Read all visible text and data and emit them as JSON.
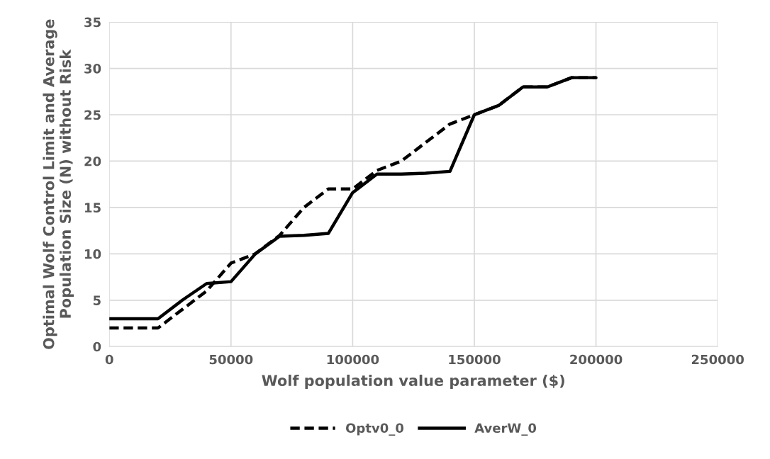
{
  "chart_data": {
    "type": "line",
    "xlabel": "Wolf population value parameter ($)",
    "ylabel": "Optimal Wolf Control Limit and Average Population Size (N) without Risk",
    "x": [
      0,
      10000,
      20000,
      30000,
      40000,
      50000,
      60000,
      70000,
      80000,
      90000,
      100000,
      110000,
      120000,
      130000,
      140000,
      150000,
      160000,
      170000,
      180000,
      190000,
      200000
    ],
    "series": [
      {
        "name": "Optv0_0",
        "color": "#000000",
        "line_style": "dashed",
        "values": [
          2,
          2,
          2,
          4,
          6,
          9,
          10,
          12,
          15,
          17,
          17,
          19,
          20,
          22,
          24,
          25,
          26,
          28,
          28,
          29,
          29
        ]
      },
      {
        "name": "AverW_0",
        "color": "#000000",
        "line_style": "solid",
        "values": [
          3,
          3,
          3,
          5,
          6.8,
          7,
          10,
          11.9,
          12,
          12.2,
          16.6,
          18.6,
          18.6,
          18.7,
          18.9,
          25,
          26,
          28,
          28,
          29,
          29
        ]
      }
    ],
    "xlim": [
      0,
      250000
    ],
    "xticks": [
      0,
      50000,
      100000,
      150000,
      200000,
      250000
    ],
    "ylim": [
      0,
      35
    ],
    "yticks": [
      0,
      5,
      10,
      15,
      20,
      25,
      30,
      35
    ],
    "grid": true,
    "legend": "bottom",
    "marker": "none"
  }
}
